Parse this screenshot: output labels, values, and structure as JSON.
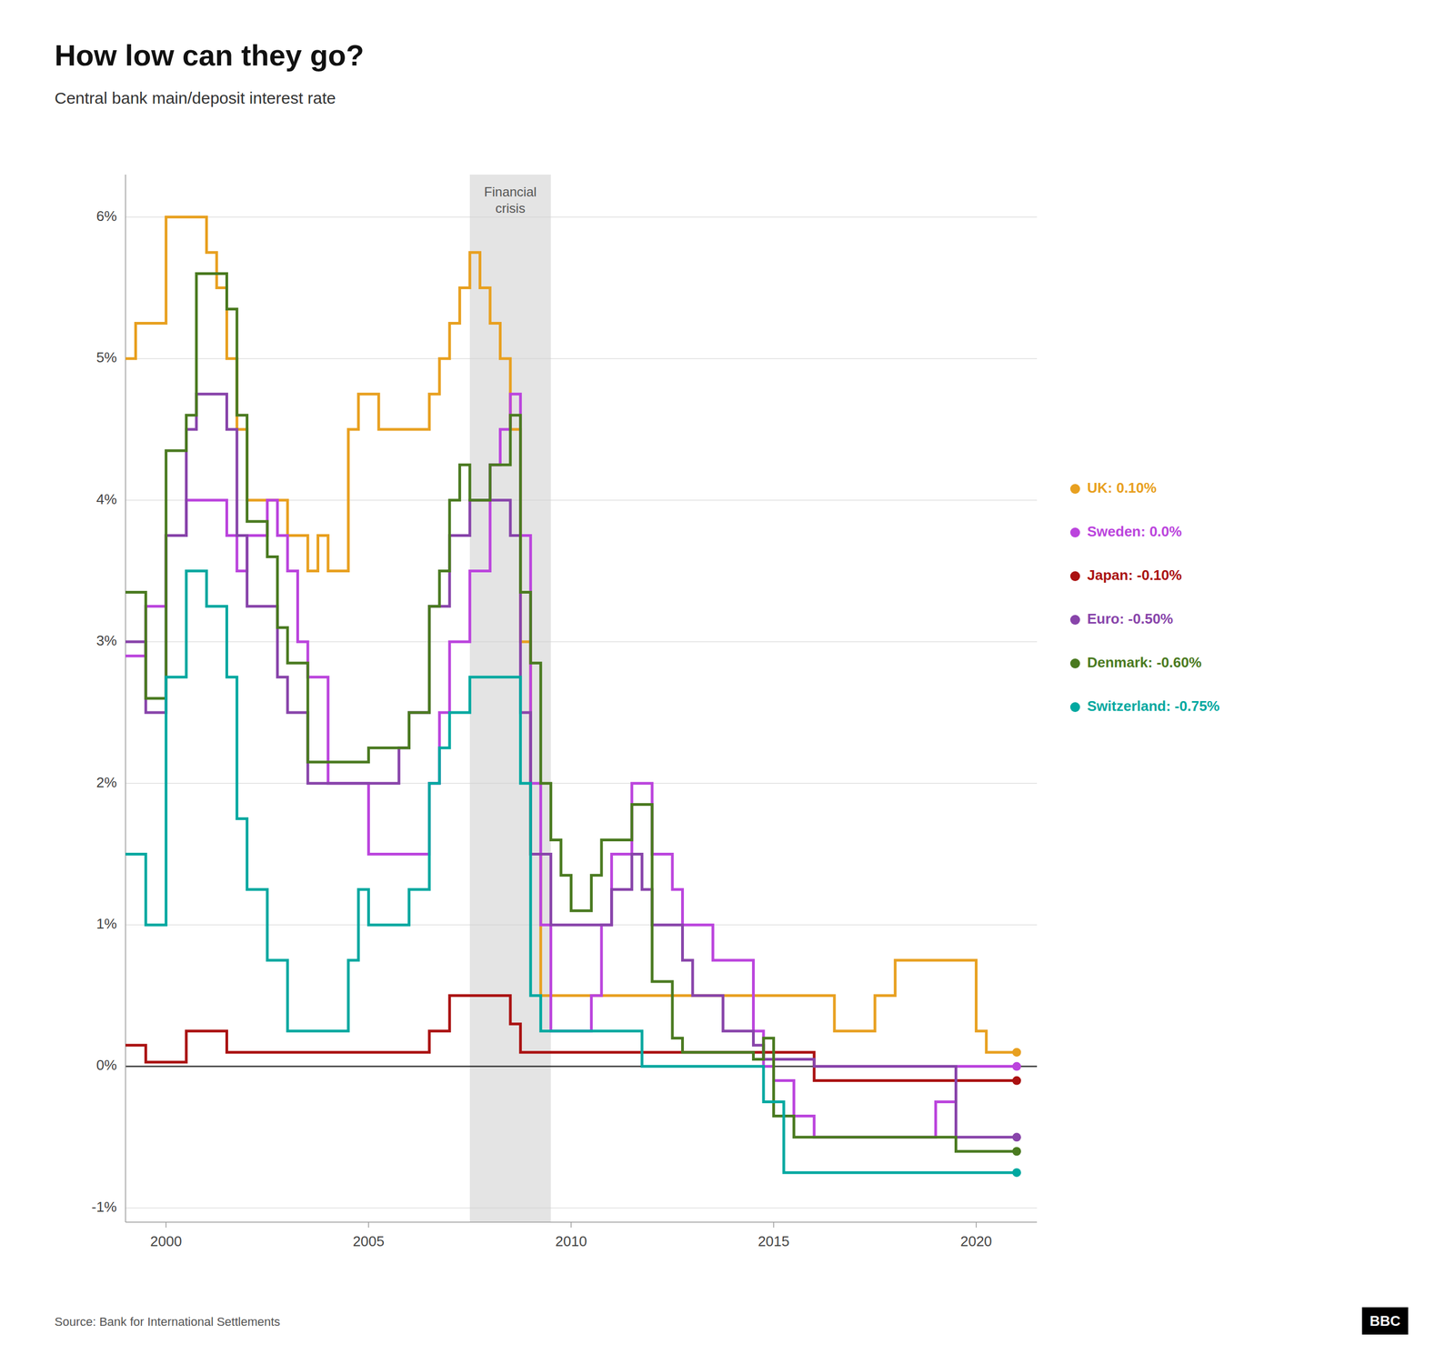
{
  "chart_data": {
    "type": "step",
    "title": "How low can they go?",
    "subtitle": "Central bank main/deposit interest rate",
    "source": "Source: Bank for International Settlements",
    "logo": "BBC",
    "shaded_span": {
      "start": 2007.5,
      "end": 2009.5,
      "label": "Financial\ncrisis"
    },
    "xlim": [
      1999,
      2021.5
    ],
    "ylim": [
      -1.1,
      6.3
    ],
    "xticks": [
      2000,
      2005,
      2010,
      2015,
      2020
    ],
    "yticks": [
      {
        "value": -1,
        "label": "-1%"
      },
      {
        "value": 0,
        "label": "0%"
      },
      {
        "value": 1,
        "label": "1%"
      },
      {
        "value": 2,
        "label": "2%"
      },
      {
        "value": 3,
        "label": "3%"
      },
      {
        "value": 4,
        "label": "4%"
      },
      {
        "value": 5,
        "label": "5%"
      },
      {
        "value": 6,
        "label": "6%"
      }
    ],
    "grid": true,
    "legend": "right",
    "series": [
      {
        "name": "UK: 0.10%",
        "color": "#E8A020",
        "x": [
          1999.0,
          1999.25,
          1999.5,
          2000.0,
          2001.0,
          2001.25,
          2001.5,
          2001.75,
          2002.0,
          2002.5,
          2003.0,
          2003.5,
          2003.75,
          2004.0,
          2004.5,
          2004.75,
          2005.0,
          2005.25,
          2005.5,
          2005.75,
          2006.0,
          2006.5,
          2006.75,
          2007.0,
          2007.25,
          2007.5,
          2007.75,
          2008.0,
          2008.25,
          2008.5,
          2008.75,
          2009.0,
          2009.25,
          2009.5,
          2010.0,
          2015.0,
          2016.5,
          2017.0,
          2017.5,
          2018.0,
          2019.0,
          2020.0,
          2020.25,
          2021.0
        ],
        "values": [
          5.0,
          5.25,
          5.25,
          6.0,
          5.75,
          5.5,
          5.0,
          4.5,
          4.0,
          4.0,
          3.75,
          3.5,
          3.75,
          3.5,
          4.5,
          4.75,
          4.75,
          4.5,
          4.5,
          4.5,
          4.5,
          4.75,
          5.0,
          5.25,
          5.5,
          5.75,
          5.5,
          5.25,
          5.0,
          4.5,
          3.0,
          1.5,
          0.5,
          0.5,
          0.5,
          0.5,
          0.25,
          0.25,
          0.5,
          0.75,
          0.75,
          0.25,
          0.1,
          0.1
        ]
      },
      {
        "name": "Sweden: 0.0%",
        "color": "#BB44DD",
        "x": [
          1999.0,
          1999.5,
          2000.0,
          2000.5,
          2000.75,
          2001.0,
          2001.5,
          2001.75,
          2002.0,
          2002.5,
          2002.75,
          2003.0,
          2003.25,
          2003.5,
          2004.0,
          2004.5,
          2005.0,
          2005.5,
          2006.0,
          2006.5,
          2006.75,
          2007.0,
          2007.5,
          2008.0,
          2008.25,
          2008.5,
          2008.75,
          2009.0,
          2009.25,
          2009.5,
          2009.75,
          2010.0,
          2010.5,
          2010.75,
          2011.0,
          2011.5,
          2012.0,
          2012.5,
          2012.75,
          2013.0,
          2013.5,
          2014.0,
          2014.5,
          2014.75,
          2015.0,
          2015.5,
          2016.0,
          2017.0,
          2019.0,
          2019.5,
          2021.0
        ],
        "values": [
          2.9,
          3.25,
          3.75,
          4.0,
          4.0,
          4.0,
          3.75,
          3.5,
          3.75,
          4.0,
          3.75,
          3.5,
          3.0,
          2.75,
          2.0,
          2.0,
          1.5,
          1.5,
          1.5,
          2.0,
          2.5,
          3.0,
          3.5,
          4.25,
          4.5,
          4.75,
          3.75,
          2.0,
          1.0,
          0.25,
          0.25,
          0.25,
          0.5,
          1.0,
          1.5,
          2.0,
          1.5,
          1.25,
          1.0,
          1.0,
          0.75,
          0.75,
          0.25,
          0.0,
          -0.1,
          -0.35,
          -0.5,
          -0.5,
          -0.25,
          0.0,
          0.0
        ]
      },
      {
        "name": "Japan: -0.10%",
        "color": "#AA1111",
        "x": [
          1999.0,
          1999.5,
          2000.0,
          2000.5,
          2001.0,
          2001.5,
          2001.75,
          2002.0,
          2005.0,
          2006.0,
          2006.5,
          2007.0,
          2008.0,
          2008.5,
          2008.75,
          2009.0,
          2009.5,
          2010.0,
          2013.0,
          2015.0,
          2016.0,
          2021.0
        ],
        "values": [
          0.15,
          0.03,
          0.03,
          0.25,
          0.25,
          0.1,
          0.1,
          0.1,
          0.1,
          0.1,
          0.25,
          0.5,
          0.5,
          0.3,
          0.1,
          0.1,
          0.1,
          0.1,
          0.1,
          0.1,
          -0.1,
          -0.1
        ]
      },
      {
        "name": "Euro: -0.50%",
        "color": "#8844AA",
        "x": [
          1999.0,
          1999.5,
          2000.0,
          2000.5,
          2000.75,
          2001.0,
          2001.5,
          2001.75,
          2002.0,
          2002.5,
          2002.75,
          2003.0,
          2003.5,
          2004.0,
          2005.0,
          2005.75,
          2006.0,
          2006.5,
          2007.0,
          2007.5,
          2008.0,
          2008.5,
          2008.75,
          2009.0,
          2009.5,
          2010.0,
          2011.0,
          2011.5,
          2011.75,
          2012.0,
          2012.75,
          2013.0,
          2013.75,
          2014.5,
          2014.75,
          2015.0,
          2016.0,
          2019.5,
          2021.0
        ],
        "values": [
          3.0,
          2.5,
          3.75,
          4.5,
          4.75,
          4.75,
          4.5,
          3.75,
          3.25,
          3.25,
          2.75,
          2.5,
          2.0,
          2.0,
          2.0,
          2.25,
          2.5,
          3.25,
          3.75,
          4.0,
          4.0,
          3.75,
          2.5,
          1.5,
          1.0,
          1.0,
          1.25,
          1.5,
          1.25,
          1.0,
          0.75,
          0.5,
          0.25,
          0.15,
          0.05,
          0.05,
          0.0,
          -0.5,
          -0.5
        ]
      },
      {
        "name": "Denmark: -0.60%",
        "color": "#4A7A20",
        "x": [
          1999.0,
          1999.5,
          2000.0,
          2000.5,
          2000.75,
          2001.0,
          2001.5,
          2001.75,
          2002.0,
          2002.5,
          2002.75,
          2003.0,
          2003.5,
          2004.0,
          2004.5,
          2005.0,
          2005.5,
          2006.0,
          2006.5,
          2006.75,
          2007.0,
          2007.25,
          2007.5,
          2008.0,
          2008.5,
          2008.75,
          2009.0,
          2009.25,
          2009.5,
          2009.75,
          2010.0,
          2010.5,
          2010.75,
          2011.0,
          2011.5,
          2012.0,
          2012.5,
          2012.75,
          2013.0,
          2014.0,
          2014.5,
          2014.75,
          2015.0,
          2015.5,
          2019.5,
          2021.0
        ],
        "values": [
          3.35,
          2.6,
          4.35,
          4.6,
          5.6,
          5.6,
          5.35,
          4.6,
          3.85,
          3.6,
          3.1,
          2.85,
          2.15,
          2.15,
          2.15,
          2.25,
          2.25,
          2.5,
          3.25,
          3.5,
          4.0,
          4.25,
          4.0,
          4.25,
          4.6,
          3.35,
          2.85,
          2.0,
          1.6,
          1.35,
          1.1,
          1.35,
          1.6,
          1.6,
          1.85,
          0.6,
          0.2,
          0.1,
          0.1,
          0.1,
          0.05,
          0.2,
          -0.35,
          -0.5,
          -0.6,
          -0.6
        ]
      },
      {
        "name": "Switzerland: -0.75%",
        "color": "#00A8A0",
        "x": [
          1999.0,
          1999.5,
          2000.0,
          2000.5,
          2000.75,
          2001.0,
          2001.5,
          2001.75,
          2002.0,
          2002.5,
          2003.0,
          2003.5,
          2004.0,
          2004.5,
          2004.75,
          2005.0,
          2005.5,
          2006.0,
          2006.5,
          2006.75,
          2007.0,
          2007.5,
          2008.0,
          2008.5,
          2008.75,
          2009.0,
          2009.25,
          2009.5,
          2009.75,
          2010.0,
          2010.5,
          2011.0,
          2011.5,
          2011.75,
          2012.0,
          2013.0,
          2014.0,
          2014.75,
          2015.25,
          2021.0
        ],
        "values": [
          1.5,
          1.0,
          2.75,
          3.5,
          3.5,
          3.25,
          2.75,
          1.75,
          1.25,
          0.75,
          0.25,
          0.25,
          0.25,
          0.75,
          1.25,
          1.0,
          1.0,
          1.25,
          2.0,
          2.25,
          2.5,
          2.75,
          2.75,
          2.75,
          2.0,
          0.5,
          0.25,
          0.25,
          0.25,
          0.25,
          0.25,
          0.25,
          0.25,
          0.0,
          0.0,
          0.0,
          0.0,
          -0.25,
          -0.75,
          -0.75
        ]
      }
    ]
  }
}
